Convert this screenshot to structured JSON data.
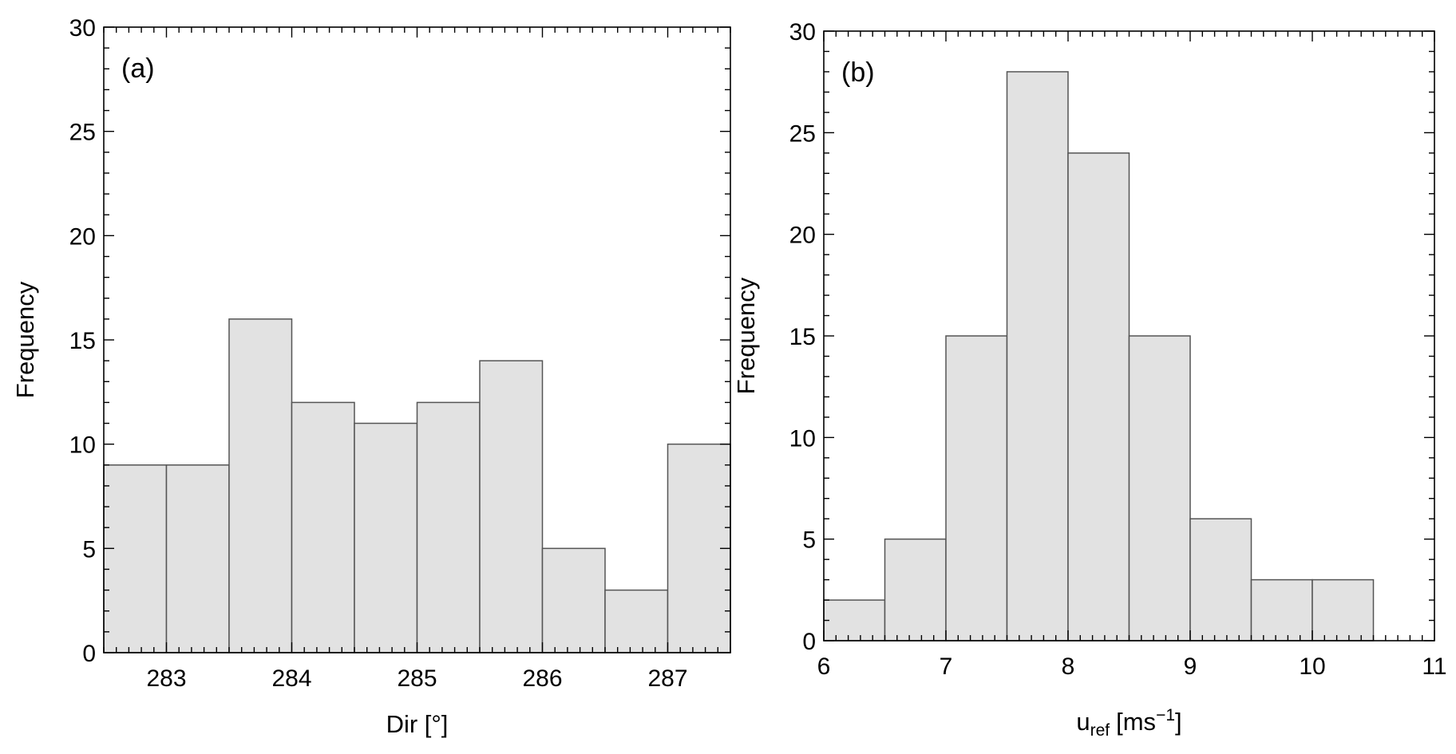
{
  "chart_data": [
    {
      "type": "bar",
      "panel_label": "(a)",
      "xlabel": "Dir [°]",
      "ylabel": "Frequency",
      "xlim": [
        282.5,
        287.5
      ],
      "ylim": [
        0,
        30
      ],
      "xticks": [
        283,
        284,
        285,
        286,
        287
      ],
      "yticks": [
        0,
        5,
        10,
        15,
        20,
        25,
        30
      ],
      "bin_edges": [
        282.5,
        283.0,
        283.5,
        284.0,
        284.5,
        285.0,
        285.5,
        286.0,
        286.5,
        287.0,
        287.5
      ],
      "values": [
        9,
        9,
        16,
        12,
        11,
        12,
        14,
        5,
        3,
        10
      ],
      "bar_color": "#e2e2e2",
      "edge_color": "#555555"
    },
    {
      "type": "bar",
      "panel_label": "(b)",
      "xlabel_main": "u",
      "xlabel_sub": "ref",
      "xlabel_unit": "[ms",
      "xlabel_sup": "−1",
      "xlabel_close": "]",
      "ylabel": "Frequency",
      "xlim": [
        6,
        11
      ],
      "ylim": [
        0,
        30
      ],
      "xticks": [
        6,
        7,
        8,
        9,
        10,
        11
      ],
      "yticks": [
        0,
        5,
        10,
        15,
        20,
        25,
        30
      ],
      "bin_edges": [
        6.0,
        6.5,
        7.0,
        7.5,
        8.0,
        8.5,
        9.0,
        9.5,
        10.0,
        10.5
      ],
      "values": [
        2,
        5,
        15,
        28,
        24,
        15,
        6,
        3,
        3
      ],
      "bar_color": "#e2e2e2",
      "edge_color": "#555555"
    }
  ]
}
